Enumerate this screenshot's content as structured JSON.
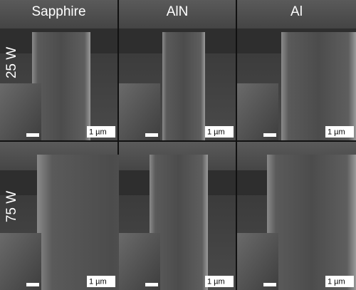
{
  "column_headers": [
    "Sapphire",
    "AlN",
    "Al"
  ],
  "row_labels": [
    "25 W",
    "75 W"
  ],
  "panels": [
    {
      "scale_label": "1 µm"
    },
    {
      "scale_label": "1 µm"
    },
    {
      "scale_label": "1 µm"
    },
    {
      "scale_label": "1 µm"
    },
    {
      "scale_label": "1 µm"
    },
    {
      "scale_label": "1 µm"
    }
  ]
}
